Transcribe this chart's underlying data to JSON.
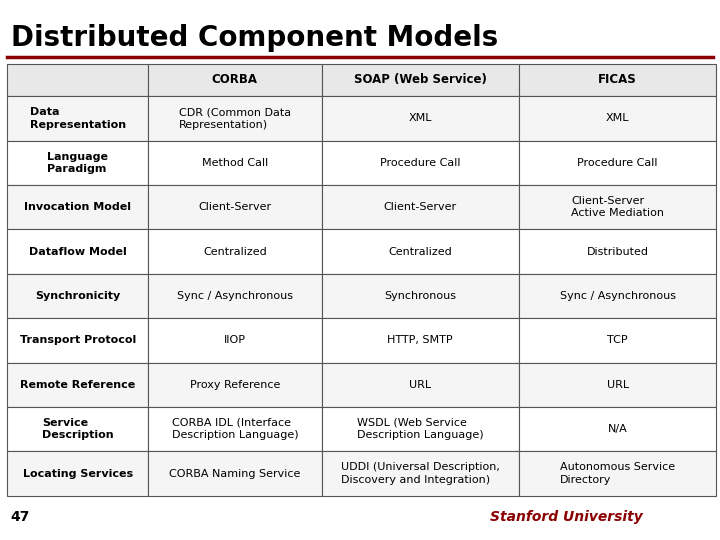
{
  "title": "Distributed Component Models",
  "title_color": "#000000",
  "title_fontsize": 20,
  "accent_color": "#8B0000",
  "bg_color": "#FFFFFF",
  "footer_number": "47",
  "footer_text": "Stanford University",
  "footer_text_color": "#8B0000",
  "headers": [
    "",
    "CORBA",
    "SOAP (Web Service)",
    "FICAS"
  ],
  "rows": [
    [
      "Data\nRepresentation",
      "CDR (Common Data\nRepresentation)",
      "XML",
      "XML"
    ],
    [
      "Language\nParadigm",
      "Method Call",
      "Procedure Call",
      "Procedure Call"
    ],
    [
      "Invocation Model",
      "Client-Server",
      "Client-Server",
      "Client-Server\nActive Mediation"
    ],
    [
      "Dataflow Model",
      "Centralized",
      "Centralized",
      "Distributed"
    ],
    [
      "Synchronicity",
      "Sync / Asynchronous",
      "Synchronous",
      "Sync / Asynchronous"
    ],
    [
      "Transport Protocol",
      "IIOP",
      "HTTP, SMTP",
      "TCP"
    ],
    [
      "Remote Reference",
      "Proxy Reference",
      "URL",
      "URL"
    ],
    [
      "Service\nDescription",
      "CORBA IDL (Interface\nDescription Language)",
      "WSDL (Web Service\nDescription Language)",
      "N/A"
    ],
    [
      "Locating Services",
      "CORBA Naming Service",
      "UDDI (Universal Description,\nDiscovery and Integration)",
      "Autonomous Service\nDirectory"
    ]
  ],
  "table_border_color": "#555555",
  "header_bg": "#E8E8E8",
  "row_bg_odd": "#F5F5F5",
  "row_bg_even": "#FFFFFF",
  "cell_text_color": "#000000",
  "cell_fontsize": 8.0,
  "header_fontsize": 8.5,
  "col_props": [
    0.175,
    0.215,
    0.245,
    0.245
  ]
}
